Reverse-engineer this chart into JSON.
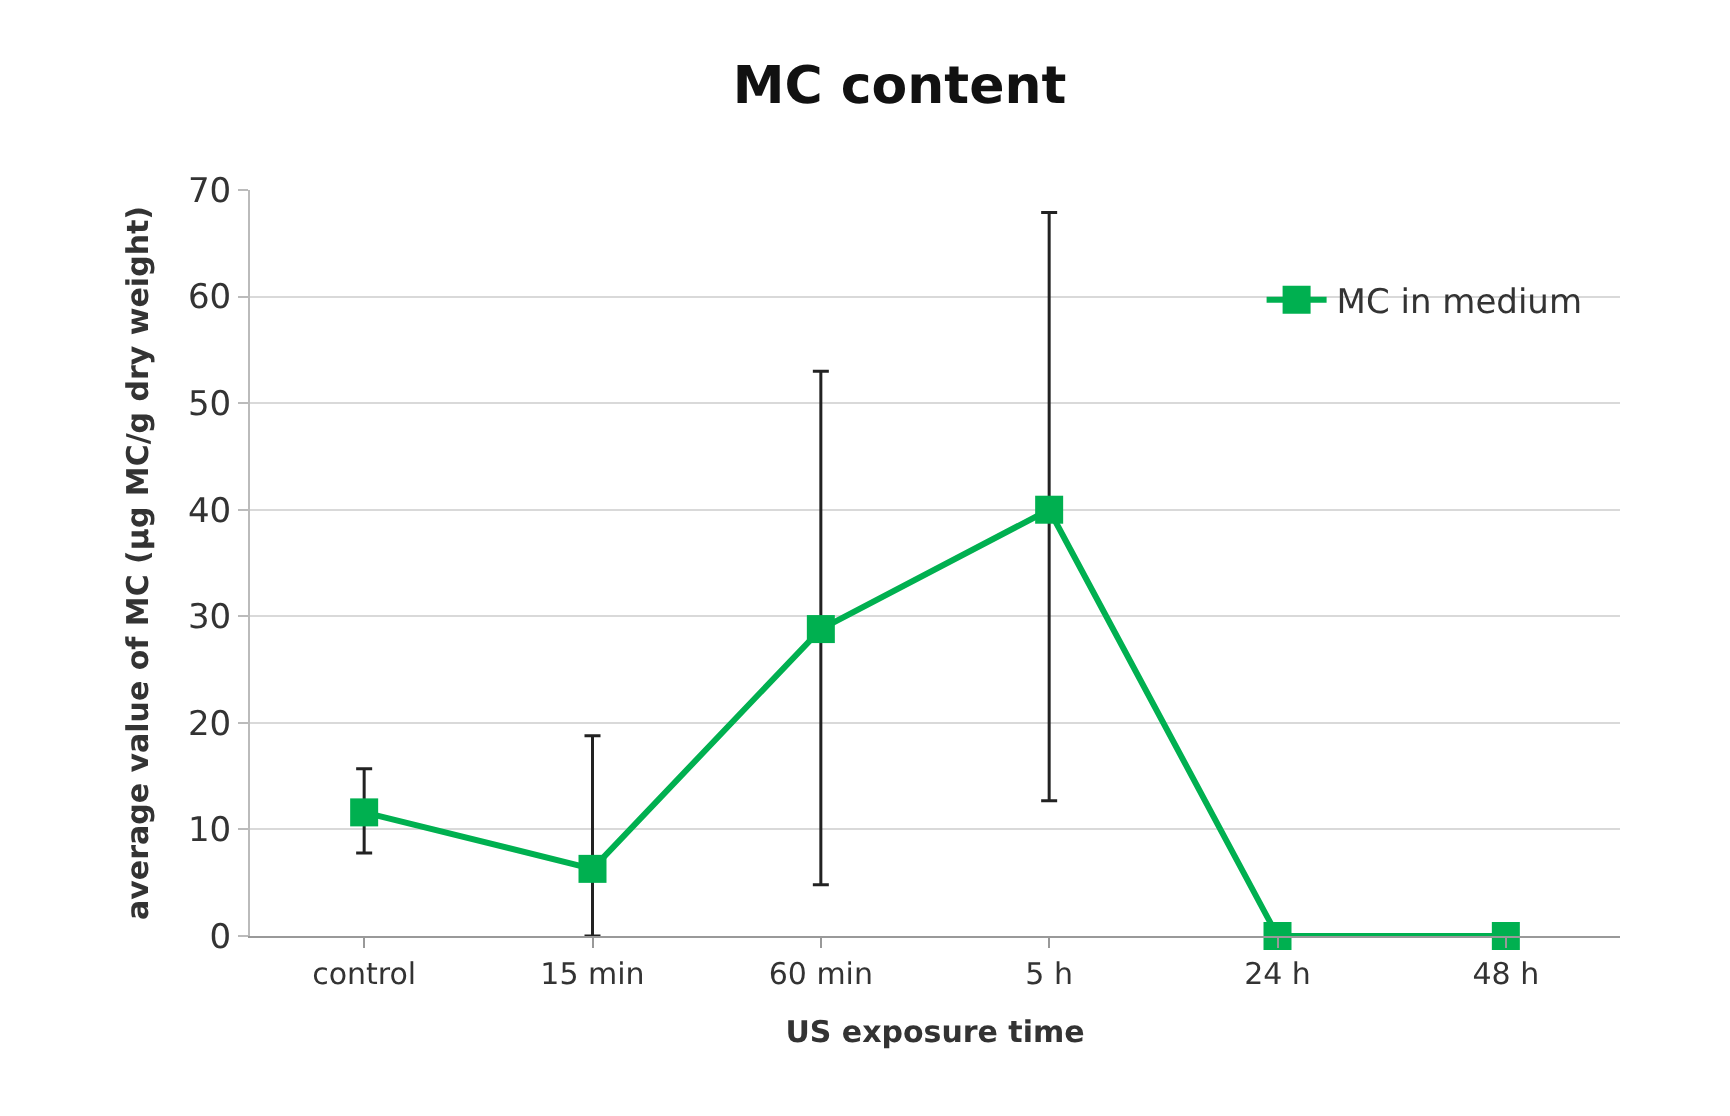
{
  "chart_data": {
    "type": "line",
    "title": "MC content",
    "xlabel": "US exposure time",
    "ylabel": "average value of MC (μg MC/g dry weight)",
    "categories": [
      "control",
      "15 min",
      "60 min",
      "5 h",
      "24 h",
      "48 h"
    ],
    "series": [
      {
        "name": "MC in medium",
        "color": "#00b050",
        "values": [
          11.6,
          6.3,
          28.8,
          40.0,
          0,
          0
        ],
        "errors": [
          [
            7.8,
            15.7
          ],
          [
            0,
            18.8
          ],
          [
            4.8,
            53.0
          ],
          [
            12.7,
            67.9
          ],
          null,
          null
        ]
      }
    ],
    "ylim": [
      0,
      70
    ],
    "yticks": [
      0,
      10,
      20,
      30,
      40,
      50,
      60,
      70
    ],
    "grid": "y",
    "legend": "top right",
    "marker": "square",
    "line_style": "solid"
  }
}
